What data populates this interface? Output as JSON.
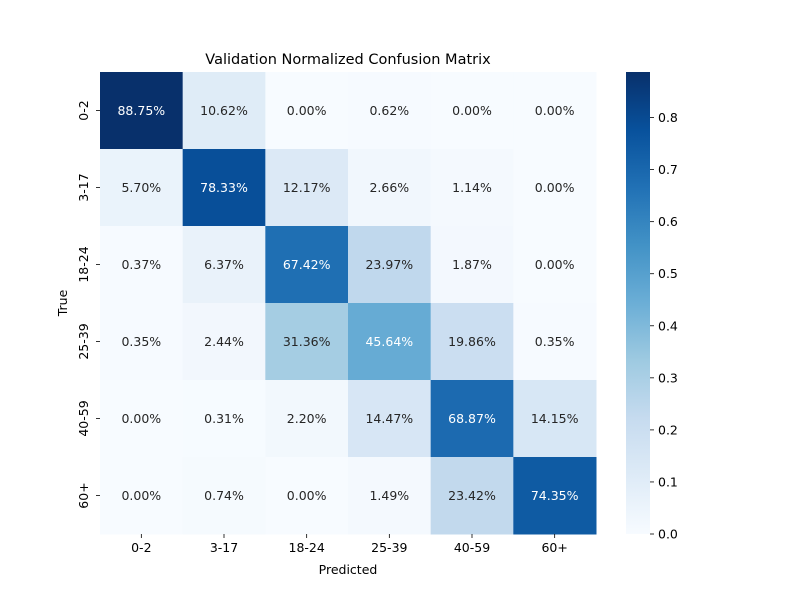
{
  "chart_data": {
    "type": "heatmap",
    "title": "Validation Normalized Confusion Matrix",
    "xlabel": "Predicted",
    "ylabel": "True",
    "x_categories": [
      "0-2",
      "3-17",
      "18-24",
      "25-39",
      "40-59",
      "60+"
    ],
    "y_categories": [
      "0-2",
      "3-17",
      "18-24",
      "25-39",
      "40-59",
      "60+"
    ],
    "values": [
      [
        0.8875,
        0.1062,
        0.0,
        0.0062,
        0.0,
        0.0
      ],
      [
        0.057,
        0.7833,
        0.1217,
        0.0266,
        0.0114,
        0.0
      ],
      [
        0.0037,
        0.0637,
        0.6742,
        0.2397,
        0.0187,
        0.0
      ],
      [
        0.0035,
        0.0244,
        0.3136,
        0.4564,
        0.1986,
        0.0035
      ],
      [
        0.0,
        0.0031,
        0.022,
        0.1447,
        0.6887,
        0.1415
      ],
      [
        0.0,
        0.0074,
        0.0,
        0.0149,
        0.2342,
        0.7435
      ]
    ],
    "cell_labels": [
      [
        "88.75%",
        "10.62%",
        "0.00%",
        "0.62%",
        "0.00%",
        "0.00%"
      ],
      [
        "5.70%",
        "78.33%",
        "12.17%",
        "2.66%",
        "1.14%",
        "0.00%"
      ],
      [
        "0.37%",
        "6.37%",
        "67.42%",
        "23.97%",
        "1.87%",
        "0.00%"
      ],
      [
        "0.35%",
        "2.44%",
        "31.36%",
        "45.64%",
        "19.86%",
        "0.35%"
      ],
      [
        "0.00%",
        "0.31%",
        "2.20%",
        "14.47%",
        "68.87%",
        "14.15%"
      ],
      [
        "0.00%",
        "0.74%",
        "0.00%",
        "1.49%",
        "23.42%",
        "74.35%"
      ]
    ],
    "colormap": "Blues",
    "colorbar": {
      "min": 0.0,
      "max": 0.8875,
      "ticks": [
        0.0,
        0.1,
        0.2,
        0.3,
        0.4,
        0.5,
        0.6,
        0.7,
        0.8
      ],
      "tick_labels": [
        "0.0",
        "0.1",
        "0.2",
        "0.3",
        "0.4",
        "0.5",
        "0.6",
        "0.7",
        "0.8"
      ]
    },
    "grid": false,
    "legend": "none"
  },
  "colors": {
    "blues": [
      "#f7fbff",
      "#deebf7",
      "#c6dbef",
      "#9ecae1",
      "#6baed6",
      "#4292c6",
      "#2171b5",
      "#08519c",
      "#08306b"
    ],
    "text_dark": "#262626",
    "text_light": "#ffffff"
  }
}
